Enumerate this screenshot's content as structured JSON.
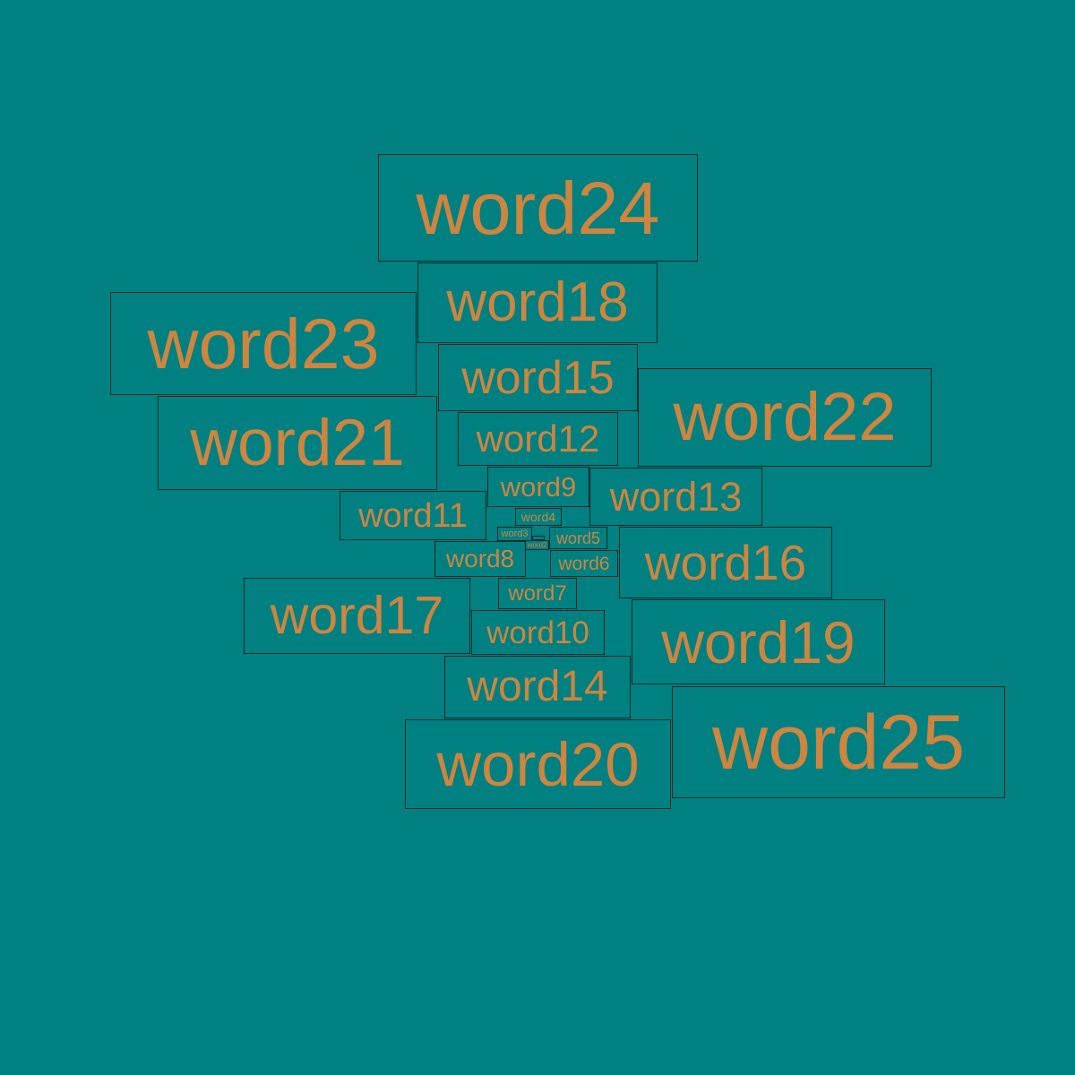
{
  "style": {
    "background": "#008080",
    "text_color": "#cd853f",
    "border_color": "#0a2a2a"
  },
  "words": [
    {
      "name": "word-1",
      "text": ""
    },
    {
      "name": "word-2",
      "text": "word2"
    },
    {
      "name": "word-3",
      "text": "word3"
    },
    {
      "name": "word-4",
      "text": "word4"
    },
    {
      "name": "word-5",
      "text": "word5"
    },
    {
      "name": "word-6",
      "text": "word6"
    },
    {
      "name": "word-7",
      "text": "word7"
    },
    {
      "name": "word-8",
      "text": "word8"
    },
    {
      "name": "word-9",
      "text": "word9"
    },
    {
      "name": "word-10",
      "text": "word10"
    },
    {
      "name": "word-11",
      "text": "word11"
    },
    {
      "name": "word-12",
      "text": "word12"
    },
    {
      "name": "word-13",
      "text": "word13"
    },
    {
      "name": "word-14",
      "text": "word14"
    },
    {
      "name": "word-15",
      "text": "word15"
    },
    {
      "name": "word-16",
      "text": "word16"
    },
    {
      "name": "word-17",
      "text": "word17"
    },
    {
      "name": "word-18",
      "text": "word18"
    },
    {
      "name": "word-19",
      "text": "word19"
    },
    {
      "name": "word-20",
      "text": "word20"
    },
    {
      "name": "word-21",
      "text": "word21"
    },
    {
      "name": "word-22",
      "text": "word22"
    },
    {
      "name": "word-23",
      "text": "word23"
    },
    {
      "name": "word-24",
      "text": "word24"
    },
    {
      "name": "word-25",
      "text": "word25"
    }
  ]
}
